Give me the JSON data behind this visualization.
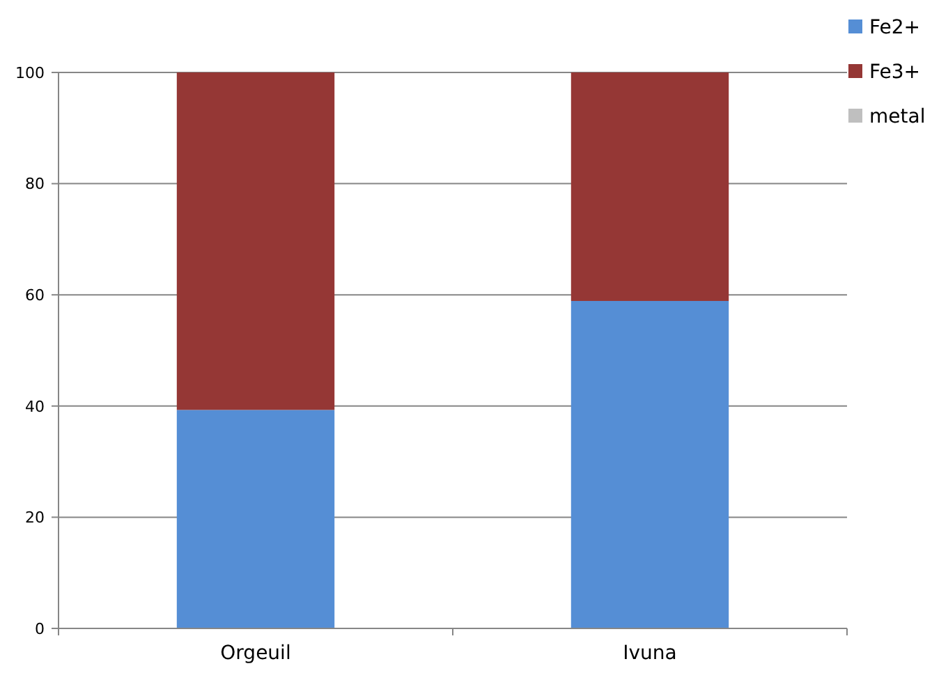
{
  "chart_data": {
    "type": "bar",
    "stacked": true,
    "categories": [
      "Orgeuil",
      "Ivuna"
    ],
    "series": [
      {
        "name": "Fe2+",
        "color": "#558ed5",
        "values": [
          39.3,
          58.9
        ]
      },
      {
        "name": "Fe3+",
        "color": "#953735",
        "values": [
          60.7,
          41.1
        ]
      },
      {
        "name": "metal",
        "color": "#bfbfbf",
        "values": [
          0,
          0
        ]
      }
    ],
    "ylim": [
      0,
      100
    ],
    "yticks": [
      0,
      20,
      40,
      60,
      80,
      100
    ],
    "grid": "y",
    "legend": "top right"
  }
}
